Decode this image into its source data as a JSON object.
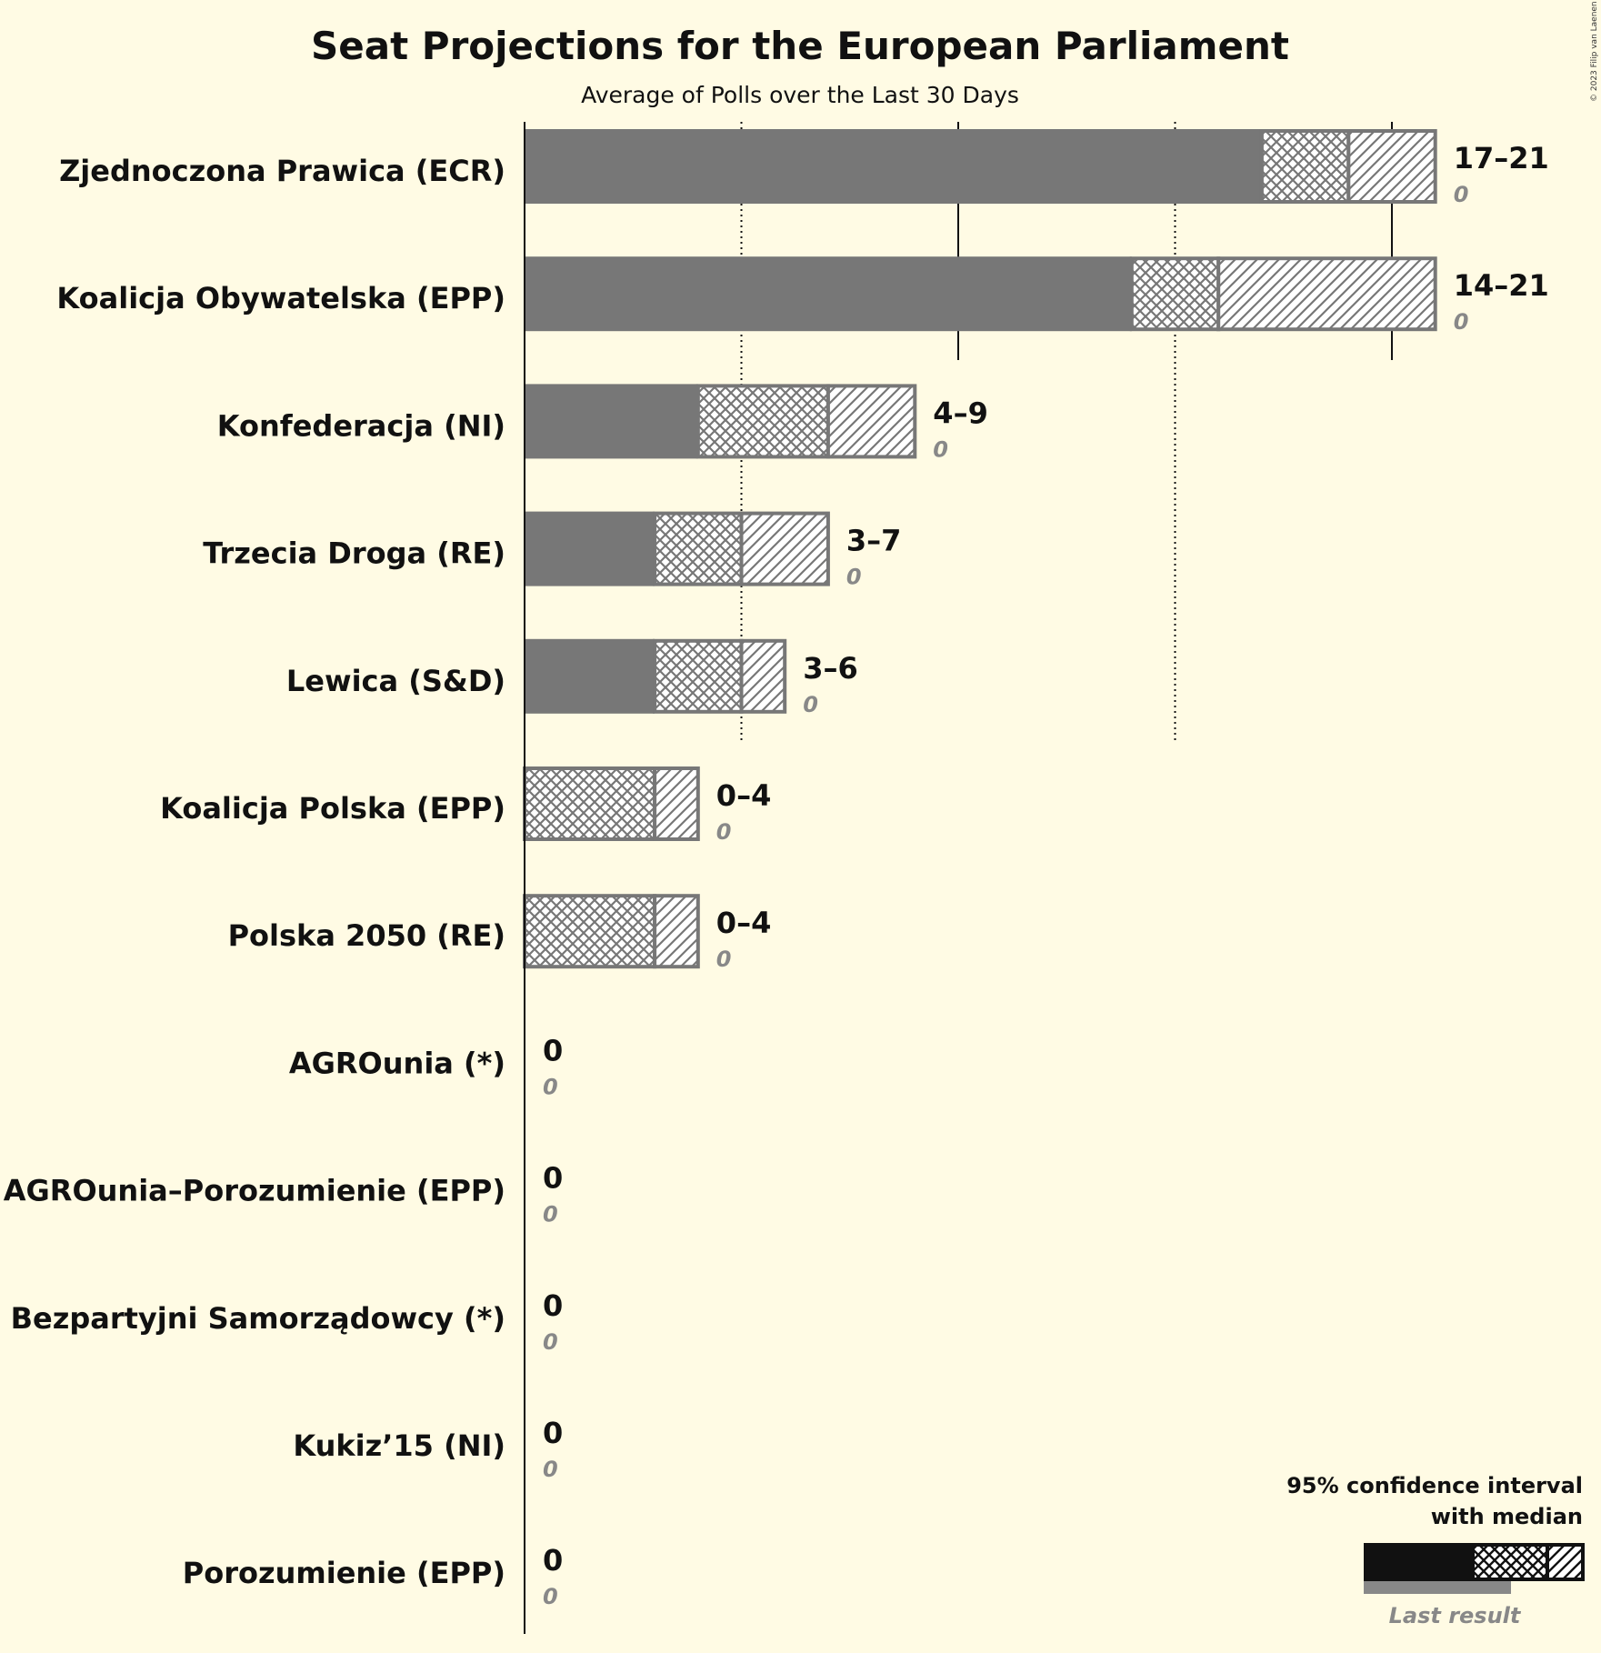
{
  "chart_data": {
    "type": "bar",
    "title": "Seat Projections for the European Parliament",
    "subtitle": "Average of Polls over the Last 30 Days",
    "copyright": "© 2023 Filip van Laenen",
    "xlim": [
      0,
      21
    ],
    "major_gridlines": [
      10,
      20
    ],
    "minor_gridlines": [
      5,
      15
    ],
    "colors": {
      "background": "#fffbe4",
      "bar": "#777777",
      "bar_outline": "#777777",
      "hatch_fill": "#ffffff",
      "legend_bar": "#111111",
      "last_result": "#888888",
      "text": "#111111"
    },
    "series": [
      {
        "party": "Zjednoczona Prawica (ECR)",
        "ci_low": 17,
        "median": 19,
        "ci_high": 21,
        "range_label": "17–21",
        "last_result": 0,
        "last_result_label": "0"
      },
      {
        "party": "Koalicja Obywatelska (EPP)",
        "ci_low": 14,
        "median": 16,
        "ci_high": 21,
        "range_label": "14–21",
        "last_result": 0,
        "last_result_label": "0"
      },
      {
        "party": "Konfederacja (NI)",
        "ci_low": 4,
        "median": 7,
        "ci_high": 9,
        "range_label": "4–9",
        "last_result": 0,
        "last_result_label": "0"
      },
      {
        "party": "Trzecia Droga (RE)",
        "ci_low": 3,
        "median": 5,
        "ci_high": 7,
        "range_label": "3–7",
        "last_result": 0,
        "last_result_label": "0"
      },
      {
        "party": "Lewica (S&D)",
        "ci_low": 3,
        "median": 5,
        "ci_high": 6,
        "range_label": "3–6",
        "last_result": 0,
        "last_result_label": "0"
      },
      {
        "party": "Koalicja Polska (EPP)",
        "ci_low": 0,
        "median": 3,
        "ci_high": 4,
        "range_label": "0–4",
        "last_result": 0,
        "last_result_label": "0"
      },
      {
        "party": "Polska 2050 (RE)",
        "ci_low": 0,
        "median": 3,
        "ci_high": 4,
        "range_label": "0–4",
        "last_result": 0,
        "last_result_label": "0"
      },
      {
        "party": "AGROunia (*)",
        "ci_low": 0,
        "median": 0,
        "ci_high": 0,
        "range_label": "0",
        "last_result": 0,
        "last_result_label": "0"
      },
      {
        "party": "AGROunia–Porozumienie (EPP)",
        "ci_low": 0,
        "median": 0,
        "ci_high": 0,
        "range_label": "0",
        "last_result": 0,
        "last_result_label": "0"
      },
      {
        "party": "Bezpartyjni Samorządowcy (*)",
        "ci_low": 0,
        "median": 0,
        "ci_high": 0,
        "range_label": "0",
        "last_result": 0,
        "last_result_label": "0"
      },
      {
        "party": "Kukiz’15 (NI)",
        "ci_low": 0,
        "median": 0,
        "ci_high": 0,
        "range_label": "0",
        "last_result": 0,
        "last_result_label": "0"
      },
      {
        "party": "Porozumienie (EPP)",
        "ci_low": 0,
        "median": 0,
        "ci_high": 0,
        "range_label": "0",
        "last_result": 0,
        "last_result_label": "0"
      }
    ],
    "legend": {
      "title_line1": "95% confidence interval",
      "title_line2": "with median",
      "last_result_label": "Last result",
      "placement": "bottom-right"
    }
  }
}
